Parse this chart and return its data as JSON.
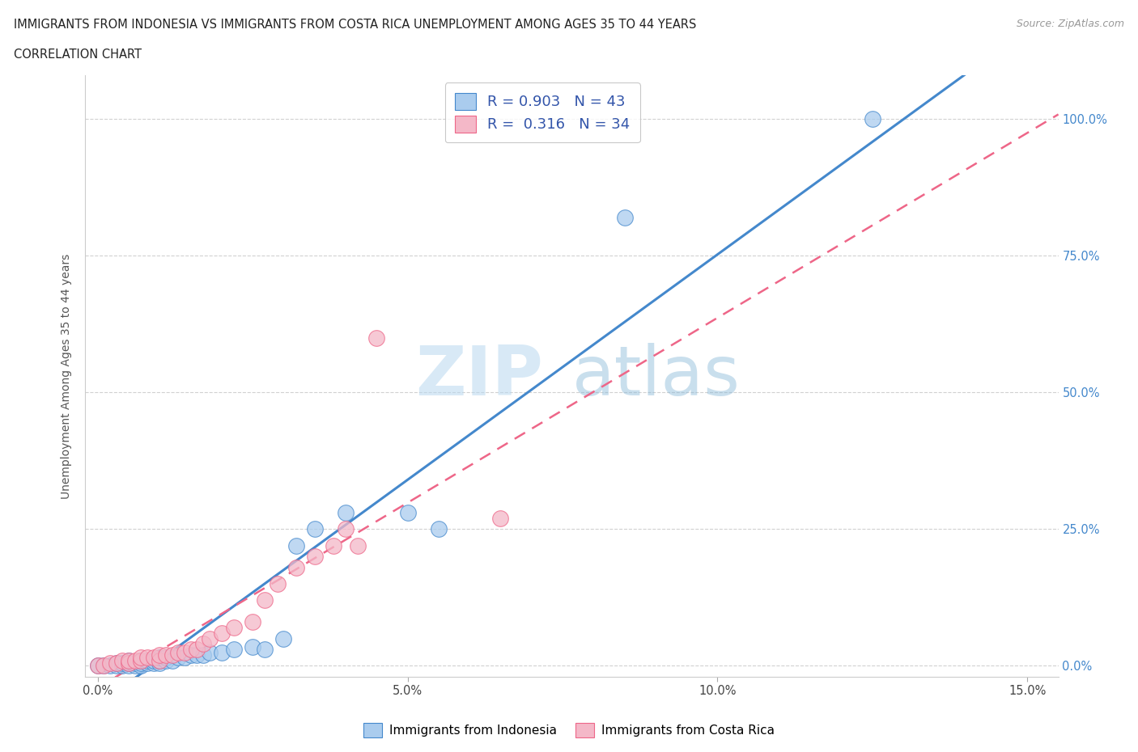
{
  "title_line1": "IMMIGRANTS FROM INDONESIA VS IMMIGRANTS FROM COSTA RICA UNEMPLOYMENT AMONG AGES 35 TO 44 YEARS",
  "title_line2": "CORRELATION CHART",
  "source_text": "Source: ZipAtlas.com",
  "ylabel": "Unemployment Among Ages 35 to 44 years",
  "x_tick_vals": [
    0.0,
    0.05,
    0.1,
    0.15
  ],
  "x_tick_labels": [
    "0.0%",
    "5.0%",
    "10.0%",
    "15.0%"
  ],
  "y_tick_vals": [
    0.0,
    0.25,
    0.5,
    0.75,
    1.0
  ],
  "y_tick_labels": [
    "0.0%",
    "25.0%",
    "50.0%",
    "75.0%",
    "100.0%"
  ],
  "xlim": [
    -0.002,
    0.155
  ],
  "ylim": [
    -0.02,
    1.08
  ],
  "color_indonesia": "#aaccee",
  "color_costa_rica": "#f4b8c8",
  "color_line_indonesia": "#4488cc",
  "color_line_costa_rica": "#ee6688",
  "color_text_blue": "#3355aa",
  "indonesia_scatter_x": [
    0.0,
    0.001,
    0.002,
    0.003,
    0.003,
    0.004,
    0.004,
    0.005,
    0.005,
    0.005,
    0.006,
    0.006,
    0.007,
    0.007,
    0.007,
    0.008,
    0.008,
    0.009,
    0.009,
    0.01,
    0.01,
    0.01,
    0.011,
    0.011,
    0.012,
    0.013,
    0.014,
    0.015,
    0.016,
    0.017,
    0.018,
    0.02,
    0.022,
    0.025,
    0.027,
    0.03,
    0.032,
    0.035,
    0.04,
    0.05,
    0.055,
    0.085,
    0.125
  ],
  "indonesia_scatter_y": [
    0.0,
    0.0,
    0.0,
    0.0,
    0.005,
    0.0,
    0.005,
    0.0,
    0.005,
    0.01,
    0.0,
    0.005,
    0.0,
    0.005,
    0.01,
    0.005,
    0.01,
    0.005,
    0.01,
    0.005,
    0.01,
    0.015,
    0.01,
    0.015,
    0.01,
    0.015,
    0.015,
    0.02,
    0.02,
    0.02,
    0.025,
    0.025,
    0.03,
    0.035,
    0.03,
    0.05,
    0.22,
    0.25,
    0.28,
    0.28,
    0.25,
    0.82,
    1.0
  ],
  "costa_rica_scatter_x": [
    0.0,
    0.001,
    0.002,
    0.003,
    0.004,
    0.005,
    0.005,
    0.006,
    0.007,
    0.007,
    0.008,
    0.009,
    0.01,
    0.01,
    0.011,
    0.012,
    0.013,
    0.014,
    0.015,
    0.016,
    0.017,
    0.018,
    0.02,
    0.022,
    0.025,
    0.027,
    0.029,
    0.032,
    0.035,
    0.038,
    0.04,
    0.042,
    0.045,
    0.065
  ],
  "costa_rica_scatter_y": [
    0.0,
    0.0,
    0.005,
    0.005,
    0.01,
    0.005,
    0.01,
    0.01,
    0.01,
    0.015,
    0.015,
    0.015,
    0.01,
    0.02,
    0.02,
    0.02,
    0.025,
    0.025,
    0.03,
    0.03,
    0.04,
    0.05,
    0.06,
    0.07,
    0.08,
    0.12,
    0.15,
    0.18,
    0.2,
    0.22,
    0.25,
    0.22,
    0.6,
    0.27
  ]
}
